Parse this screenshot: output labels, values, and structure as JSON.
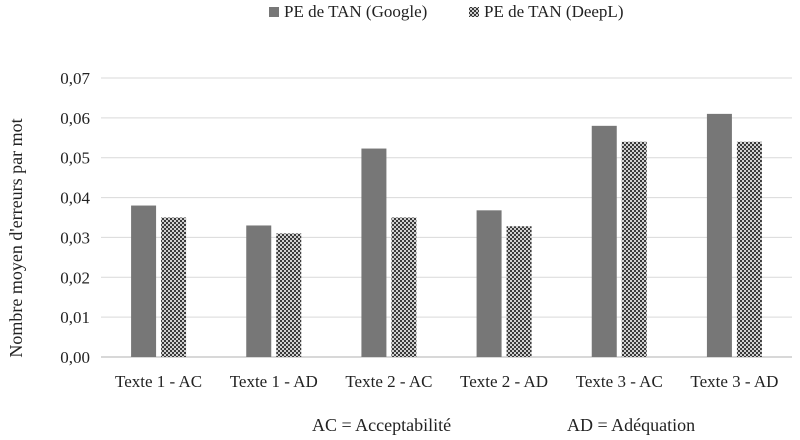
{
  "chart_data": {
    "type": "bar",
    "categories": [
      "Texte 1 - AC",
      "Texte 1 - AD",
      "Texte 2 - AC",
      "Texte 2 - AD",
      "Texte 3 - AC",
      "Texte 3 - AD"
    ],
    "series": [
      {
        "name": "PE de TAN (Google)",
        "values": [
          0.038,
          0.033,
          0.0523,
          0.0368,
          0.058,
          0.061
        ],
        "color": "#777777",
        "pattern": "solid"
      },
      {
        "name": "PE de TAN (DeepL)",
        "values": [
          0.035,
          0.031,
          0.035,
          0.0328,
          0.054,
          0.054
        ],
        "color": "#999999",
        "pattern": "checker"
      }
    ],
    "ylabel": "Nombre moyen d'erreurs par mot",
    "xlabel": "",
    "ylim": [
      0,
      0.07
    ],
    "yticks": [
      "0,00",
      "0,01",
      "0,02",
      "0,03",
      "0,04",
      "0,05",
      "0,06",
      "0,07"
    ],
    "grid": true,
    "legend": "top-center",
    "notes": [
      "AC = Acceptabilité",
      "AD = Adéquation"
    ]
  }
}
